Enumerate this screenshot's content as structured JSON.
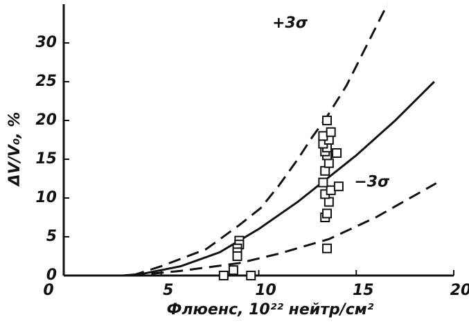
{
  "chart_data": {
    "type": "line",
    "x_label": "Флюенс, 10²² нейтр/см²",
    "y_label": "ΔV/V₀, %",
    "xlim": [
      0,
      20
    ],
    "ylim": [
      0,
      35
    ],
    "xticks": [
      0,
      5,
      10,
      15,
      20
    ],
    "yticks": [
      0,
      5,
      10,
      15,
      20,
      25,
      30
    ],
    "series": [
      {
        "style": "solid",
        "color": "#111111",
        "x": [
          3,
          4,
          6,
          8,
          9,
          10,
          12,
          13.5,
          15,
          17,
          19
        ],
        "values": [
          0,
          0.2,
          1.2,
          3,
          4.5,
          6,
          9.5,
          12.5,
          15.5,
          20,
          25
        ]
      },
      {
        "style": "dashed",
        "color": "#111111",
        "x": [
          3.5,
          5,
          7.3,
          9,
          10.1,
          11,
          12,
          12.7,
          13.5,
          14.5,
          15.5,
          16.6
        ],
        "values": [
          0,
          1.2,
          3.4,
          6.5,
          8.7,
          11.5,
          15,
          17.7,
          20.5,
          24.5,
          29.5,
          35
        ]
      },
      {
        "style": "dashed",
        "color": "#111111",
        "x": [
          3.5,
          6,
          9,
          11,
          13.6,
          16,
          19.1
        ],
        "values": [
          0,
          0.6,
          1.6,
          2.8,
          4.7,
          7.5,
          11.9
        ]
      }
    ],
    "points": {
      "x": [
        9,
        9,
        8.9,
        8.9,
        8.9,
        8.2,
        8.7,
        9.6,
        13.5,
        13.4,
        13.5,
        13.6,
        13.4,
        13.7,
        14.1,
        13.3,
        13.4,
        13.6,
        13.5,
        13.4,
        14,
        13.5,
        13.3,
        13.6,
        13.3,
        13.7,
        13.5
      ],
      "values": [
        4.5,
        4,
        3.5,
        3,
        2.5,
        0,
        0.7,
        0,
        3.5,
        7.5,
        8,
        9.5,
        10.5,
        11,
        11.5,
        12,
        13.5,
        14.5,
        15.5,
        16,
        15.8,
        16.5,
        17,
        17.5,
        18,
        18.5,
        20
      ]
    },
    "annotations": [
      {
        "text": "+3σ",
        "x": 11.6,
        "y": 32.5
      },
      {
        "text": "−3σ",
        "x": 15.8,
        "y": 12
      }
    ]
  }
}
